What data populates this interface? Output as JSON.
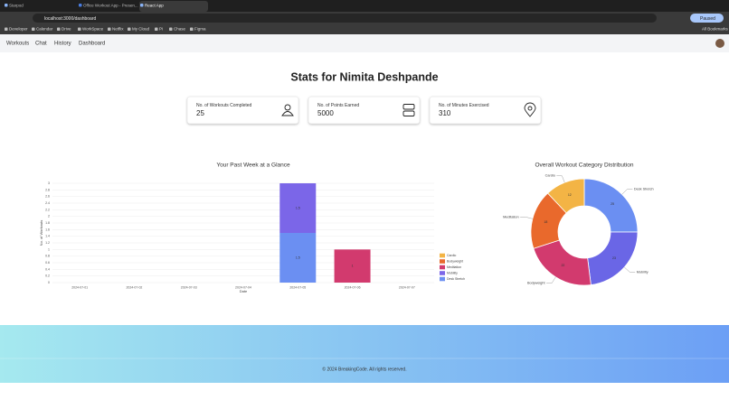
{
  "browser": {
    "tabs": [
      "Starpod",
      "Office Workout App - Presen...",
      "React App"
    ],
    "url": "localhost:3000/dashboard",
    "bookmarks": [
      "Developer",
      "Calendar",
      "Drive",
      "WorkSpace",
      "Netflix",
      "My Cloud",
      "PI",
      "Chase",
      "Figma"
    ],
    "all_bookmarks": "All Bookmarks",
    "profile": "Paused"
  },
  "nav": {
    "links": [
      "Workouts",
      "Chat",
      "History",
      "Dashboard"
    ]
  },
  "title": "Stats for Nimita Deshpande",
  "stats": [
    {
      "label": "No. of Workouts Completed",
      "value": 25
    },
    {
      "label": "No. of Points Earned",
      "value": 5000
    },
    {
      "label": "No. of Minutes Exercised",
      "value": 310
    }
  ],
  "chart_data": [
    {
      "type": "bar",
      "stacked": true,
      "title": "Your Past Week at a Glance",
      "x_label": "Date",
      "y_label": "No. of Workouts",
      "categories": [
        "2024-07-01",
        "2024-07-02",
        "2024-07-03",
        "2024-07-04",
        "2024-07-05",
        "2024-07-06",
        "2024-07-07"
      ],
      "series": [
        {
          "name": "Cardio",
          "color": "#f3b445",
          "values": [
            0,
            0,
            0,
            0,
            0,
            0,
            0
          ]
        },
        {
          "name": "Bodyweight",
          "color": "#e9692c",
          "values": [
            0,
            0,
            0,
            0,
            0,
            0,
            0
          ]
        },
        {
          "name": "Meditation",
          "color": "#d23a6e",
          "values": [
            0,
            0,
            0,
            0,
            0,
            1,
            0
          ]
        },
        {
          "name": "Mobility",
          "color": "#7b66e8",
          "values": [
            0,
            0,
            0,
            0,
            1.5,
            0,
            0
          ]
        },
        {
          "name": "Desk Stretch",
          "color": "#6b8ff2",
          "values": [
            0,
            0,
            0,
            0,
            1.5,
            0,
            0
          ]
        }
      ],
      "ylim": [
        0,
        3
      ],
      "yticks": [
        0,
        0.2,
        0.4,
        0.6,
        0.8,
        1,
        1.2,
        1.4,
        1.6,
        1.8,
        2,
        2.2,
        2.4,
        2.6,
        2.8,
        3
      ],
      "grid": true,
      "legend": "right"
    },
    {
      "type": "doughnut",
      "title": "Overall Workout Category Distribution",
      "categories": [
        "Desk Stretch",
        "Mobility",
        "Bodyweight",
        "Meditation",
        "Cardio"
      ],
      "colors": [
        "#6b8ff2",
        "#6a66e6",
        "#d23a6e",
        "#e9692c",
        "#f3b445"
      ],
      "values": [
        25,
        23,
        22,
        18,
        12
      ]
    }
  ],
  "footer": "© 2024 BreakingCode. All rights reserved."
}
